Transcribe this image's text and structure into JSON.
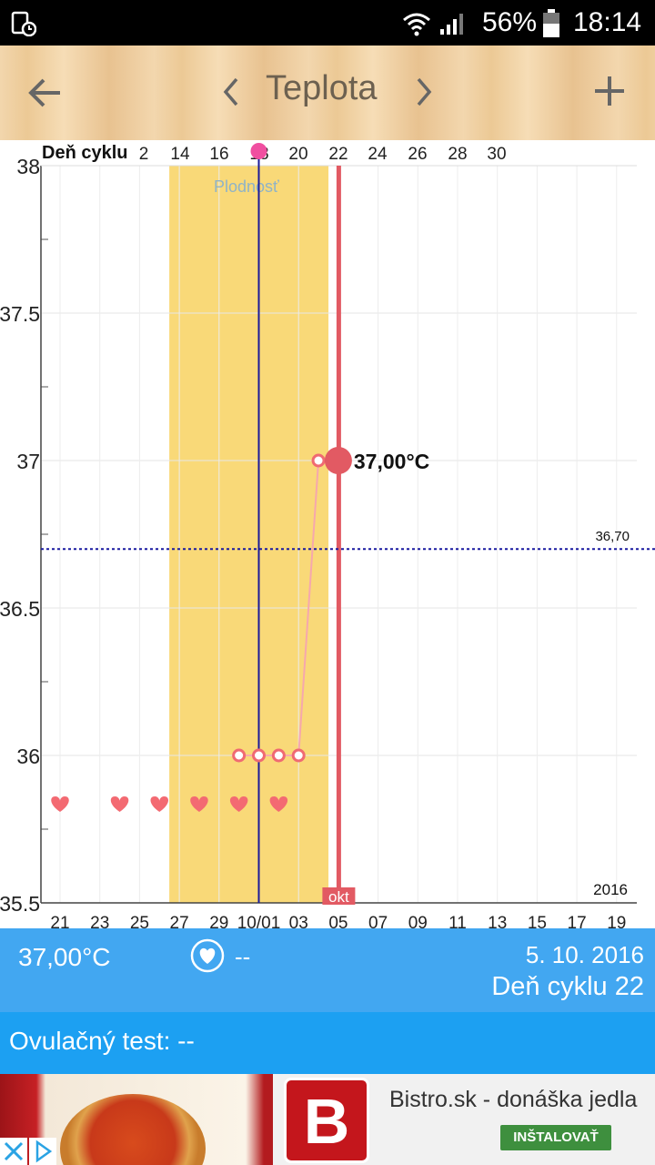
{
  "status_bar": {
    "battery_percent": "56%",
    "time": "18:14"
  },
  "toolbar": {
    "title": "Teplota"
  },
  "chart_data": {
    "type": "line",
    "top_axis_label": "Deň cyklu",
    "top_ticks": [
      "2",
      "14",
      "16",
      "18",
      "20",
      "22",
      "24",
      "26",
      "28",
      "30"
    ],
    "x_ticks": [
      "21",
      "23",
      "25",
      "27",
      "29",
      "10/01",
      "03",
      "05",
      "07",
      "09",
      "11",
      "13",
      "15",
      "17",
      "19"
    ],
    "y_ticks": [
      "35.5",
      "36",
      "36.5",
      "37",
      "37.5",
      "38"
    ],
    "ylim": [
      35.5,
      38
    ],
    "fertile_label": "Plodnosť",
    "coverline_value": 36.7,
    "coverline_label": "36,70",
    "year_label": "2016",
    "month_label": "okt",
    "series": [
      {
        "x": [
          "09-30",
          "10-01",
          "10-02",
          "10-03",
          "10-04",
          "10-05"
        ],
        "values": [
          36.0,
          36.0,
          36.0,
          36.0,
          37.0,
          37.0
        ]
      }
    ],
    "selected_label": "37,00°C",
    "hearts_dates": [
      "09-21",
      "09-24",
      "09-26",
      "09-28",
      "09-30",
      "10-02"
    ]
  },
  "info": {
    "temperature": "37,00°C",
    "heart_value": "--",
    "date": "5. 10. 2016",
    "cycle_day": "Deň cyklu 22"
  },
  "ovulation": {
    "label": "Ovulačný test: --"
  },
  "ad": {
    "headline": "Bistro.sk - donáška jedla",
    "button": "INŠTALOVAŤ",
    "logo_letter": "B"
  },
  "colors": {
    "accent": "#42a7f1",
    "fertile": "#f9d978",
    "today_line": "#e25a63",
    "marker": "#f06a72",
    "coverline": "#1a1aa0"
  }
}
